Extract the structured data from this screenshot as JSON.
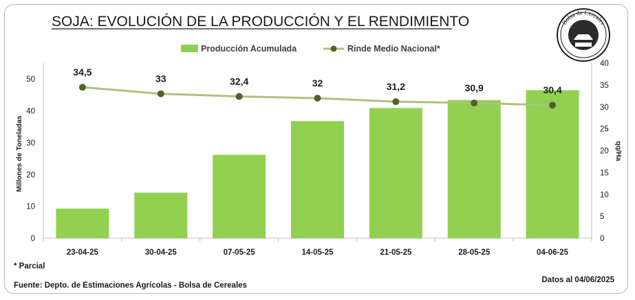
{
  "chart_data": {
    "type": "bar+line",
    "title": "SOJA: EVOLUCIÓN DE LA PRODUCCIÓN Y EL RENDIMIENTO",
    "categories": [
      "23-04-25",
      "30-04-25",
      "07-05-25",
      "14-05-25",
      "21-05-25",
      "28-05-25",
      "04-06-25"
    ],
    "series": [
      {
        "name": "Producción Acumulada",
        "type": "bar",
        "axis": "left",
        "color": "#92d050",
        "values": [
          9.3,
          14.3,
          26.2,
          36.8,
          40.9,
          43.4,
          46.5
        ]
      },
      {
        "name": "Rinde Medio Nacional*",
        "type": "line",
        "axis": "right",
        "color": "#a9c47f",
        "marker_color": "#4f6228",
        "values": [
          34.5,
          33,
          32.4,
          32,
          31.2,
          30.9,
          30.4
        ],
        "labels": [
          "34,5",
          "33",
          "32,4",
          "32",
          "31,2",
          "30,9",
          "30,4"
        ]
      }
    ],
    "y_left": {
      "label": "Millones de Toneladas",
      "min": 0,
      "max": 55,
      "ticks": [
        0,
        10,
        20,
        30,
        40,
        50
      ]
    },
    "y_right": {
      "label": "qq/Ha",
      "min": 0,
      "max": 40,
      "ticks": [
        0,
        5,
        10,
        15,
        20,
        25,
        30,
        35,
        40
      ]
    },
    "legend_position": "top-center",
    "grid": false
  },
  "logo": {
    "text": "Bolsa de Cereales",
    "icon": "bolsa-de-cereales-seal-icon"
  },
  "footnotes": {
    "partial": "* Parcial",
    "source": "Fuente: Depto. de Estimaciones Agrícolas - Bolsa de Cereales",
    "date": "Datos al 04/06/2025"
  }
}
